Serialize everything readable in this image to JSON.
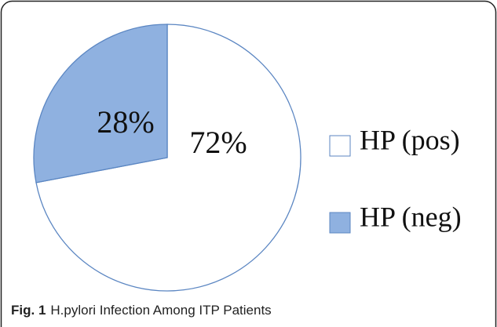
{
  "chart_data": {
    "type": "pie",
    "figure_label": "Fig. 1",
    "title": "H.pylori Infection Among ITP Patients",
    "categories": [
      "HP (pos)",
      "HP (neg)"
    ],
    "values": [
      72,
      28
    ],
    "value_labels": [
      "72%",
      "28%"
    ],
    "colors": [
      "#ffffff",
      "#8fb1e0"
    ],
    "legend": "right"
  }
}
